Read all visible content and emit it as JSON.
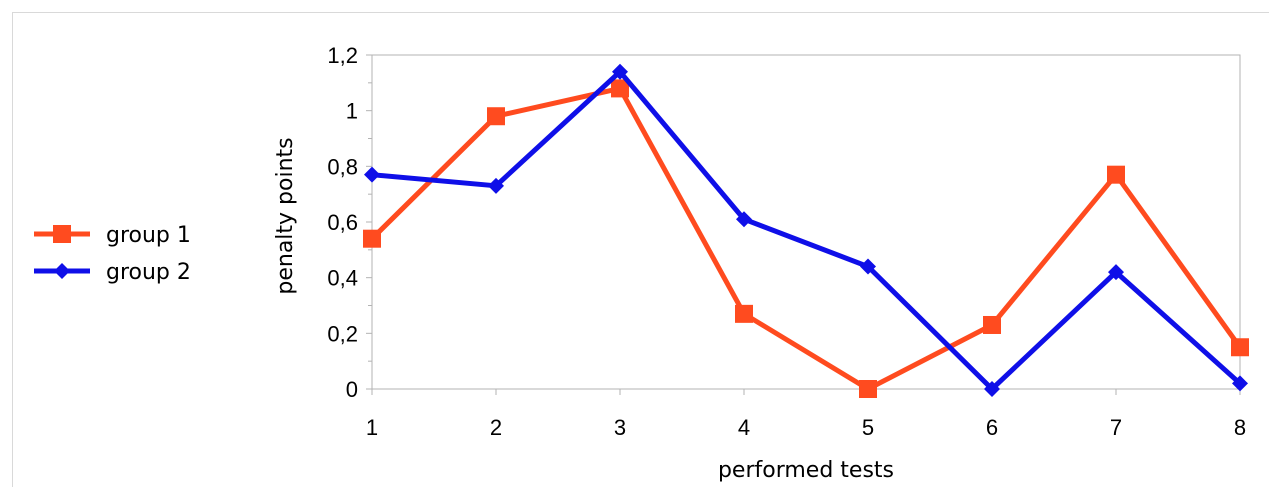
{
  "chart_data": {
    "type": "line",
    "x": [
      1,
      2,
      3,
      4,
      5,
      6,
      7,
      8
    ],
    "categories": [
      "1",
      "2",
      "3",
      "4",
      "5",
      "6",
      "7",
      "8"
    ],
    "xlabel": "performed tests",
    "ylabel": "penalty points",
    "ylim": [
      0,
      1.2
    ],
    "yticks": [
      "0",
      "0,2",
      "0,4",
      "0,6",
      "0,8",
      "1",
      "1,2"
    ],
    "grid": false,
    "legend_position": "left",
    "series": [
      {
        "name": "group 1",
        "color": "#ff4b1f",
        "marker": "square",
        "values": [
          0.54,
          0.98,
          1.08,
          0.27,
          0.0,
          0.23,
          0.77,
          0.15
        ]
      },
      {
        "name": "group 2",
        "color": "#0f0fe8",
        "marker": "diamond",
        "values": [
          0.77,
          0.73,
          1.14,
          0.61,
          0.44,
          0.0,
          0.42,
          0.02
        ]
      }
    ]
  }
}
